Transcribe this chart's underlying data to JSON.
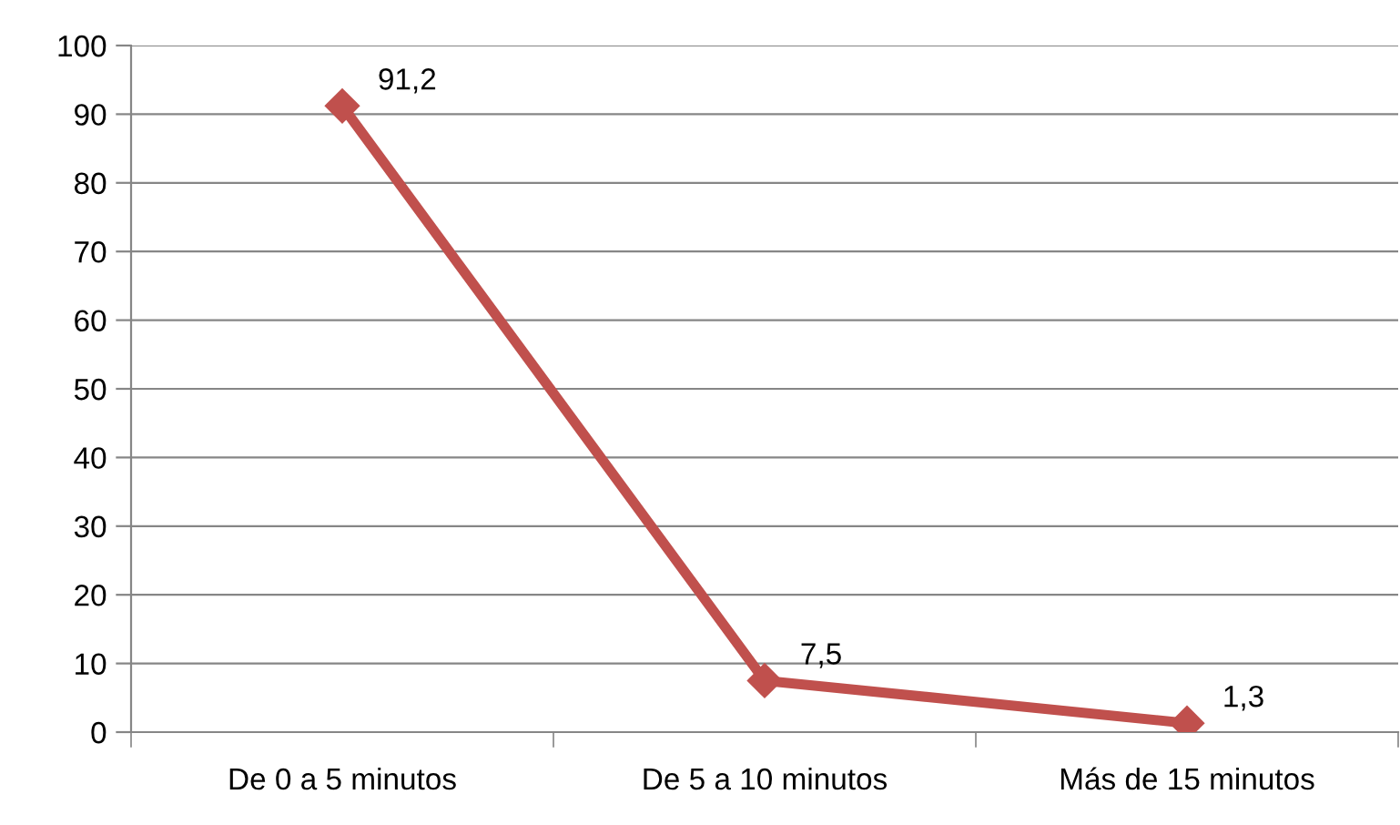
{
  "chart_data": {
    "type": "line",
    "categories": [
      "De 0 a 5 minutos",
      "De 5 a 10 minutos",
      "Más de 15 minutos"
    ],
    "series": [
      {
        "color": "#c0504d",
        "values": [
          91.2,
          7.5,
          1.3
        ],
        "value_labels": [
          "91,2",
          "7,5",
          "1,3"
        ]
      }
    ],
    "ylim": [
      0,
      100
    ],
    "yticks": [
      0,
      10,
      20,
      30,
      40,
      50,
      60,
      70,
      80,
      90,
      100
    ],
    "grid": "y",
    "marker": "diamond",
    "line_style": "solid",
    "legend": false
  }
}
